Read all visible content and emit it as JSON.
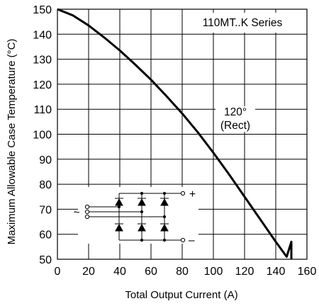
{
  "chart_data": {
    "type": "line",
    "title": "",
    "xlabel": "Total Output Current (A)",
    "ylabel": "Maximum Allowable Case Temperature (°C)",
    "xlim": [
      0,
      160
    ],
    "ylim": [
      50,
      150
    ],
    "x_ticks": [
      0,
      20,
      40,
      60,
      80,
      100,
      120,
      140,
      160
    ],
    "y_ticks": [
      50,
      60,
      70,
      80,
      90,
      100,
      110,
      120,
      130,
      140,
      150
    ],
    "grid": true,
    "series_label": "110MT..K Series",
    "curve_label": [
      "120°",
      "(Rect)"
    ],
    "series": [
      {
        "color": "#000000",
        "x": [
          0,
          10,
          20,
          30,
          40,
          50,
          60,
          70,
          80,
          90,
          100,
          110,
          120,
          130,
          140,
          147,
          150,
          150
        ],
        "y": [
          150,
          147.5,
          143.5,
          138.7,
          133.5,
          127.8,
          121.8,
          115.2,
          108.3,
          100.8,
          92.6,
          84,
          75,
          66,
          57,
          51,
          57,
          50
        ]
      }
    ],
    "schematic": {
      "ac_symbol": "~",
      "dc_plus": "+",
      "dc_minus": "–"
    }
  }
}
